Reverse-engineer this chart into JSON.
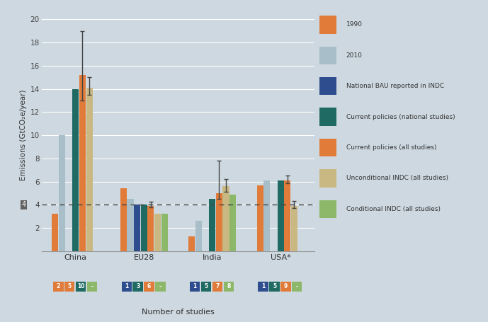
{
  "background_color": "#cdd8e0",
  "title_y": "Emissions (GtCO₂e/year)",
  "xlabel": "Number of studies",
  "ylim": [
    0,
    20
  ],
  "yticks": [
    0,
    2,
    4,
    6,
    8,
    10,
    12,
    14,
    16,
    18,
    20
  ],
  "dashed_line_y": 4,
  "groups": [
    "China",
    "EU28",
    "India",
    "USA*"
  ],
  "series_colors": [
    "#e07b39",
    "#a8bfc9",
    "#2e4d8e",
    "#1f6b63",
    "#e07b39",
    "#c9b882",
    "#8db86a"
  ],
  "series_names": [
    "1990",
    "2010",
    "National BAU reported in INDC",
    "Current policies (national studies)",
    "Current policies (all studies)",
    "Unconditional INDC (all studies)",
    "Conditional INDC (all studies)"
  ],
  "bars": {
    "China": [
      3.2,
      10.0,
      null,
      14.0,
      15.2,
      14.1,
      null
    ],
    "EU28": [
      5.4,
      4.5,
      4.0,
      4.05,
      3.9,
      3.2,
      3.2
    ],
    "India": [
      1.3,
      2.6,
      null,
      4.5,
      5.0,
      5.6,
      4.9
    ],
    "USA*": [
      5.7,
      6.1,
      null,
      6.1,
      6.1,
      3.9,
      null
    ]
  },
  "error_bars": {
    "China": [
      null,
      null,
      null,
      null,
      [
        13.0,
        19.0
      ],
      [
        13.5,
        15.0
      ],
      null
    ],
    "EU28": [
      null,
      null,
      null,
      null,
      [
        3.75,
        4.25
      ],
      null,
      null
    ],
    "India": [
      null,
      null,
      null,
      null,
      [
        4.5,
        7.8
      ],
      [
        5.1,
        6.2
      ],
      null
    ],
    "USA*": [
      null,
      null,
      null,
      null,
      [
        5.85,
        6.5
      ],
      [
        3.7,
        4.3
      ],
      null
    ]
  },
  "study_labels": {
    "China": [
      {
        "text": "2",
        "color": "#e07b39"
      },
      {
        "text": "5",
        "color": "#e07b39"
      },
      {
        "text": "10",
        "color": "#1f6b63"
      },
      {
        "text": "-",
        "color": "#8db86a"
      }
    ],
    "EU28": [
      {
        "text": "1",
        "color": "#2e4d8e"
      },
      {
        "text": "3",
        "color": "#1f6b63"
      },
      {
        "text": "6",
        "color": "#e07b39"
      },
      {
        "text": "-",
        "color": "#8db86a"
      }
    ],
    "India": [
      {
        "text": "1",
        "color": "#2e4d8e"
      },
      {
        "text": "5",
        "color": "#1f6b63"
      },
      {
        "text": "7",
        "color": "#e07b39"
      },
      {
        "text": "8",
        "color": "#8db86a"
      }
    ],
    "USA*": [
      {
        "text": "1",
        "color": "#2e4d8e"
      },
      {
        "text": "5",
        "color": "#1f6b63"
      },
      {
        "text": "9",
        "color": "#e07b39"
      },
      {
        "text": "-",
        "color": "#8db86a"
      }
    ]
  }
}
